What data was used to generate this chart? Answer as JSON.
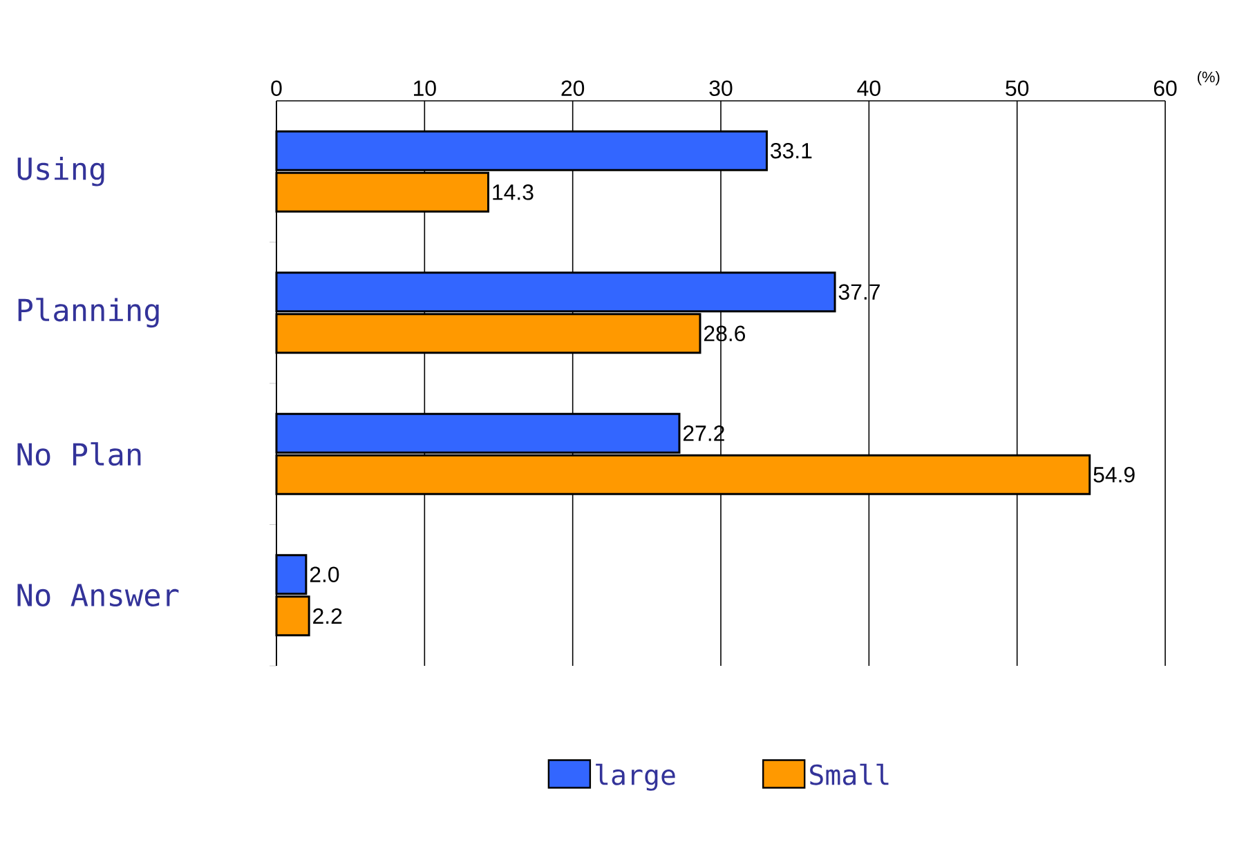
{
  "chart_data": {
    "type": "bar",
    "orientation": "horizontal",
    "categories": [
      "Using",
      "Planning",
      "No Plan",
      "No Answer"
    ],
    "series": [
      {
        "name": "large",
        "color": "#3366ff",
        "values": [
          33.1,
          37.7,
          27.2,
          2.0
        ],
        "value_labels": [
          "33.1",
          "37.7",
          "27.2",
          "2.0"
        ]
      },
      {
        "name": "Small",
        "color": "#ff9900",
        "values": [
          14.3,
          28.6,
          54.9,
          2.2
        ],
        "value_labels": [
          "14.3",
          "28.6",
          "54.9",
          "2.2"
        ]
      }
    ],
    "xlim": [
      0,
      60
    ],
    "xticks": [
      0,
      10,
      20,
      30,
      40,
      50,
      60
    ],
    "grid": "x",
    "legend": "bottom",
    "annotations": [
      "(%)"
    ]
  }
}
